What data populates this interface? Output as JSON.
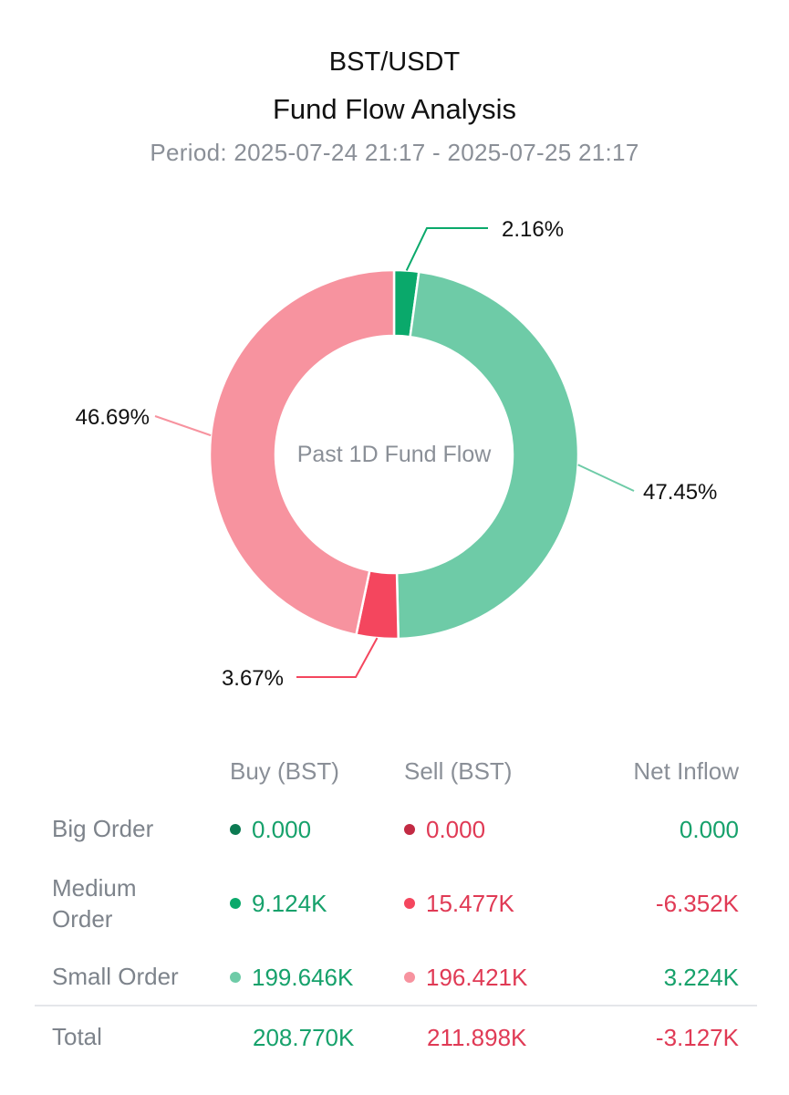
{
  "header": {
    "pair": "BST/USDT",
    "title": "Fund Flow Analysis",
    "period": "Period: 2025-07-24 21:17 - 2025-07-25 21:17"
  },
  "chart_data": {
    "type": "pie",
    "center_label": "Past 1D Fund Flow",
    "slices": [
      {
        "label": "2.16%",
        "value": 2.16,
        "color": "#0aa96b"
      },
      {
        "label": "47.45%",
        "value": 47.45,
        "color": "#6ecba7"
      },
      {
        "label": "3.67%",
        "value": 3.67,
        "color": "#f4465e"
      },
      {
        "label": "46.69%",
        "value": 46.69,
        "color": "#f7939f"
      }
    ]
  },
  "table": {
    "headers": {
      "buy": "Buy (BST)",
      "sell": "Sell (BST)",
      "net": "Net Inflow"
    },
    "rows": [
      {
        "label": "Big Order",
        "buy": "0.000",
        "sell": "0.000",
        "net": "0.000",
        "net_sign": "pos",
        "buy_color": "#0c7a52",
        "sell_color": "#c22a43"
      },
      {
        "label": "Medium Order",
        "buy": "9.124K",
        "sell": "15.477K",
        "net": "-6.352K",
        "net_sign": "neg",
        "buy_color": "#0aa96b",
        "sell_color": "#f4465e"
      },
      {
        "label": "Small Order",
        "buy": "199.646K",
        "sell": "196.421K",
        "net": "3.224K",
        "net_sign": "pos",
        "buy_color": "#6ecba7",
        "sell_color": "#f7939f"
      }
    ],
    "total": {
      "label": "Total",
      "buy": "208.770K",
      "sell": "211.898K",
      "net": "-3.127K"
    }
  }
}
